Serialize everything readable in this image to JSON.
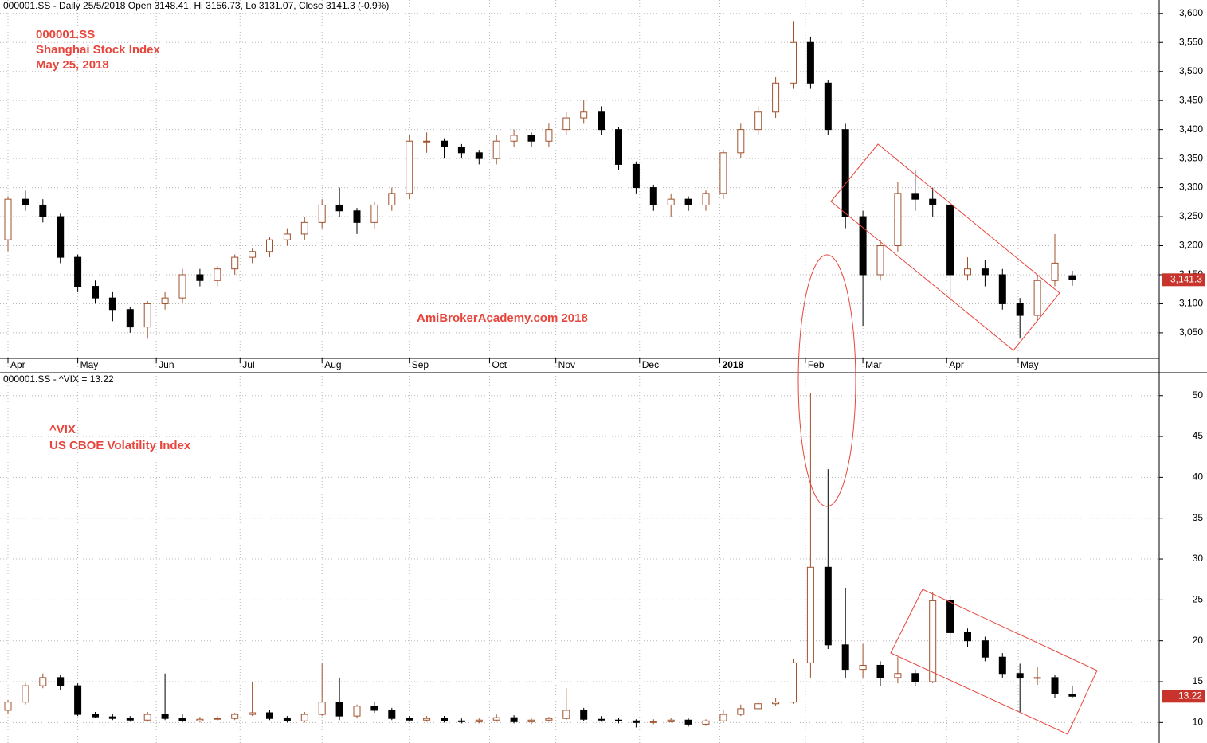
{
  "chart_data": [
    {
      "type": "candlestick",
      "header": "000001.SS - Daily 25/5/2018 Open 3148.41, Hi 3156.73, Lo 3131.07, Close 3141.3 (-0.9%)",
      "annotations": [
        "000001.SS",
        "Shanghai Stock Index",
        "May 25, 2018",
        "AmiBrokerAcademy.com  2018"
      ],
      "up_color": "#a0522d",
      "down_color": "#000000",
      "grid": true,
      "open": [
        3210,
        3280,
        3270,
        3250,
        3180,
        3130,
        3110,
        3090,
        3060,
        3100,
        3110,
        3150,
        3140,
        3160,
        3180,
        3190,
        3210,
        3220,
        3240,
        3270,
        3260,
        3240,
        3270,
        3290,
        3380,
        3380,
        3370,
        3360,
        3350,
        3380,
        3390,
        3380,
        3400,
        3420,
        3430,
        3400,
        3340,
        3300,
        3270,
        3280,
        3270,
        3290,
        3360,
        3400,
        3430,
        3480,
        3550,
        3480,
        3400,
        3250,
        3150,
        3200,
        3290,
        3280,
        3270,
        3150,
        3160,
        3150,
        3100,
        3080,
        3140,
        3148.41
      ],
      "high": [
        3285,
        3295,
        3280,
        3255,
        3185,
        3140,
        3120,
        3095,
        3105,
        3120,
        3160,
        3160,
        3165,
        3185,
        3195,
        3215,
        3230,
        3250,
        3280,
        3300,
        3265,
        3275,
        3300,
        3390,
        3395,
        3385,
        3375,
        3365,
        3390,
        3400,
        3395,
        3410,
        3430,
        3450,
        3440,
        3405,
        3345,
        3305,
        3290,
        3285,
        3295,
        3365,
        3410,
        3440,
        3490,
        3587,
        3560,
        3485,
        3410,
        3260,
        3210,
        3310,
        3330,
        3300,
        3280,
        3180,
        3175,
        3160,
        3110,
        3150,
        3220,
        3156.73
      ],
      "low": [
        3190,
        3260,
        3240,
        3170,
        3120,
        3100,
        3070,
        3050,
        3040,
        3090,
        3100,
        3130,
        3130,
        3150,
        3170,
        3180,
        3200,
        3210,
        3230,
        3250,
        3220,
        3230,
        3260,
        3280,
        3360,
        3350,
        3350,
        3340,
        3340,
        3370,
        3370,
        3370,
        3390,
        3410,
        3390,
        3330,
        3290,
        3260,
        3250,
        3260,
        3260,
        3280,
        3350,
        3390,
        3420,
        3470,
        3470,
        3390,
        3230,
        3062,
        3140,
        3190,
        3260,
        3250,
        3100,
        3140,
        3130,
        3090,
        3040,
        3070,
        3130,
        3131.07
      ],
      "close": [
        3280,
        3270,
        3250,
        3180,
        3130,
        3110,
        3090,
        3060,
        3100,
        3110,
        3150,
        3140,
        3160,
        3180,
        3190,
        3210,
        3220,
        3240,
        3270,
        3260,
        3240,
        3270,
        3290,
        3380,
        3380,
        3370,
        3360,
        3350,
        3380,
        3390,
        3380,
        3400,
        3420,
        3430,
        3400,
        3340,
        3300,
        3270,
        3280,
        3270,
        3290,
        3360,
        3400,
        3430,
        3480,
        3550,
        3480,
        3400,
        3250,
        3150,
        3200,
        3290,
        3280,
        3270,
        3150,
        3160,
        3150,
        3100,
        3080,
        3140,
        3170,
        3141.3
      ],
      "ylim": [
        3006,
        3623
      ],
      "yticks": [
        {
          "value": 3050,
          "label": "3,050"
        },
        {
          "value": 3100,
          "label": "3,100"
        },
        {
          "value": 3150,
          "label": "3,150"
        },
        {
          "value": 3200,
          "label": "3,200"
        },
        {
          "value": 3250,
          "label": "3,250"
        },
        {
          "value": 3300,
          "label": "3,300"
        },
        {
          "value": 3350,
          "label": "3,350"
        },
        {
          "value": 3400,
          "label": "3,400"
        },
        {
          "value": 3450,
          "label": "3,450"
        },
        {
          "value": 3500,
          "label": "3,500"
        },
        {
          "value": 3550,
          "label": "3,550"
        },
        {
          "value": 3600,
          "label": "3,600"
        }
      ],
      "xticks": [
        {
          "value": 0,
          "label": "Apr"
        },
        {
          "value": 4,
          "label": "May"
        },
        {
          "value": 8.5,
          "label": "Jun"
        },
        {
          "value": 13.3,
          "label": "Jul"
        },
        {
          "value": 18,
          "label": "Aug"
        },
        {
          "value": 23,
          "label": "Sep"
        },
        {
          "value": 27.6,
          "label": "Oct"
        },
        {
          "value": 31.4,
          "label": "Nov"
        },
        {
          "value": 36.2,
          "label": "Dec"
        },
        {
          "value": 40.8,
          "label": "2018"
        },
        {
          "value": 45.7,
          "label": "Feb"
        },
        {
          "value": 49,
          "label": "Mar"
        },
        {
          "value": 53.8,
          "label": "Apr"
        },
        {
          "value": 57.9,
          "label": "May"
        }
      ],
      "last_value": {
        "value": 3141.3,
        "label": "3,141.3"
      }
    },
    {
      "type": "candlestick",
      "header": "000001.SS - ^VIX = 13.22",
      "annotations": [
        "^VIX",
        "US CBOE Volatility Index"
      ],
      "up_color": "#a0522d",
      "down_color": "#000000",
      "grid": true,
      "open": [
        11.5,
        12.5,
        14.5,
        15.5,
        14.5,
        11,
        10.7,
        10.5,
        10.3,
        11,
        10.5,
        10.2,
        10.4,
        10.5,
        11,
        11.2,
        10.5,
        10.2,
        11,
        12.5,
        10.8,
        12,
        11.5,
        10.5,
        10.3,
        10.5,
        10.2,
        10.1,
        10.3,
        10.6,
        10.1,
        10.3,
        10.5,
        11.5,
        10.4,
        10.3,
        10.2,
        10,
        10.1,
        10.3,
        9.8,
        10.2,
        11,
        11.7,
        12.3,
        12.5,
        17.3,
        29,
        19.5,
        16.5,
        17,
        15.5,
        16,
        15,
        24.9,
        21,
        20,
        18,
        16,
        15.5,
        15.5,
        13.4
      ],
      "high": [
        12.8,
        14.8,
        16,
        15.8,
        14.8,
        11.3,
        11,
        10.8,
        11.3,
        16,
        11,
        10.7,
        10.8,
        11.2,
        15,
        11.5,
        10.8,
        11.3,
        17.3,
        15.5,
        12.2,
        12.5,
        11.8,
        10.8,
        10.8,
        10.8,
        10.5,
        10.5,
        11,
        10.9,
        10.6,
        10.7,
        14.2,
        11.8,
        10.8,
        10.6,
        10.4,
        10.4,
        10.6,
        10.5,
        10.4,
        11.5,
        12.2,
        12.6,
        13,
        17.8,
        50.3,
        41,
        26.5,
        19.6,
        17.5,
        18,
        16.5,
        26,
        25.5,
        21.5,
        20.5,
        18.5,
        17.2,
        16.8,
        15.8,
        14.5
      ],
      "low": [
        11,
        12.2,
        14.2,
        14,
        10.8,
        10.6,
        10.3,
        10.1,
        10.1,
        10.3,
        10,
        10,
        10.2,
        10.3,
        10.8,
        10.3,
        10,
        10,
        10.8,
        10.3,
        10.5,
        11.2,
        10.3,
        10.1,
        10.1,
        10,
        9.9,
        9.9,
        10.1,
        9.9,
        9.8,
        10.1,
        10.3,
        10.2,
        10.1,
        9.9,
        9.4,
        9.8,
        10,
        9.5,
        9.6,
        10,
        10.8,
        11.5,
        12,
        12.3,
        15.5,
        19,
        15.5,
        15.5,
        14.5,
        14.8,
        14.5,
        14.8,
        19.5,
        19.2,
        17.5,
        15.5,
        11.2,
        14.6,
        13,
        13
      ],
      "close": [
        12.5,
        14.5,
        15.5,
        14.5,
        11,
        10.7,
        10.5,
        10.3,
        11,
        10.5,
        10.2,
        10.4,
        10.5,
        11,
        11.2,
        10.5,
        10.2,
        11,
        12.5,
        10.8,
        12,
        11.5,
        10.5,
        10.3,
        10.5,
        10.2,
        10.1,
        10.3,
        10.6,
        10.1,
        10.3,
        10.5,
        11.5,
        10.4,
        10.3,
        10.2,
        10,
        10.1,
        10.3,
        9.8,
        10.2,
        11,
        11.7,
        12.3,
        12.5,
        17.3,
        29,
        19.5,
        16.5,
        17,
        15.5,
        16,
        15,
        24.9,
        21,
        20,
        18,
        16,
        15.5,
        15.5,
        13.5,
        13.22
      ],
      "ylim": [
        7.5,
        52.8
      ],
      "yticks": [
        10,
        15,
        20,
        25,
        30,
        35,
        40,
        45,
        50
      ],
      "last_value": {
        "value": 13.22,
        "label": "13.22"
      }
    }
  ]
}
